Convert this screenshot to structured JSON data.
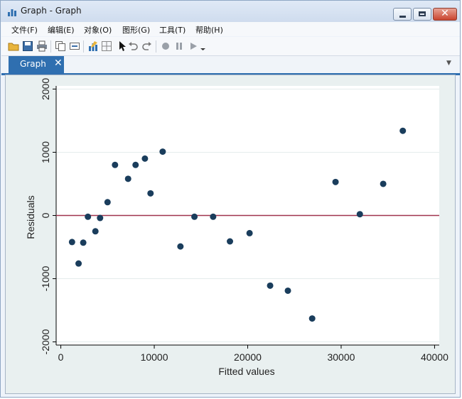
{
  "window": {
    "title": "Graph - Graph"
  },
  "menu": {
    "items": [
      "文件(F)",
      "编辑(E)",
      "对象(O)",
      "图形(G)",
      "工具(T)",
      "帮助(H)"
    ]
  },
  "toolbar": {
    "icons": [
      "open-icon",
      "save-icon",
      "print-icon",
      "copy-icon",
      "rename-icon",
      "graph-editor-icon",
      "grid-icon",
      "pointer-icon",
      "undo-icon",
      "redo-icon",
      "record-icon",
      "pause-icon",
      "play-icon"
    ]
  },
  "tabs": [
    {
      "label": "Graph",
      "close": "✕"
    }
  ],
  "colors": {
    "marker": "#1a3d5c",
    "zeroline": "#a0344e",
    "plotbg": "#ffffff",
    "gridline": "#e4ecec"
  },
  "chart_data": {
    "type": "scatter",
    "title": "",
    "xlabel": "Fitted values",
    "ylabel": "Residuals",
    "xlim": [
      -500,
      40500
    ],
    "ylim": [
      -2050,
      2050
    ],
    "xticks": [
      0,
      10000,
      20000,
      30000,
      40000
    ],
    "yticks": [
      2000,
      1000,
      0,
      -1000,
      -2000
    ],
    "grid": true,
    "reference_line_y": 0,
    "points": [
      {
        "x": 1200,
        "y": -420
      },
      {
        "x": 1900,
        "y": -760
      },
      {
        "x": 2400,
        "y": -430
      },
      {
        "x": 2900,
        "y": -20
      },
      {
        "x": 3700,
        "y": -250
      },
      {
        "x": 4200,
        "y": -40
      },
      {
        "x": 5000,
        "y": 210
      },
      {
        "x": 5800,
        "y": 800
      },
      {
        "x": 7200,
        "y": 580
      },
      {
        "x": 8000,
        "y": 800
      },
      {
        "x": 9000,
        "y": 900
      },
      {
        "x": 9600,
        "y": 350
      },
      {
        "x": 10900,
        "y": 1010
      },
      {
        "x": 12800,
        "y": -490
      },
      {
        "x": 14300,
        "y": -20
      },
      {
        "x": 16300,
        "y": -20
      },
      {
        "x": 18100,
        "y": -410
      },
      {
        "x": 20200,
        "y": -280
      },
      {
        "x": 22400,
        "y": -1110
      },
      {
        "x": 24300,
        "y": -1190
      },
      {
        "x": 26900,
        "y": -1630
      },
      {
        "x": 29400,
        "y": 530
      },
      {
        "x": 32000,
        "y": 20
      },
      {
        "x": 34500,
        "y": 500
      },
      {
        "x": 36600,
        "y": 1340
      }
    ]
  }
}
